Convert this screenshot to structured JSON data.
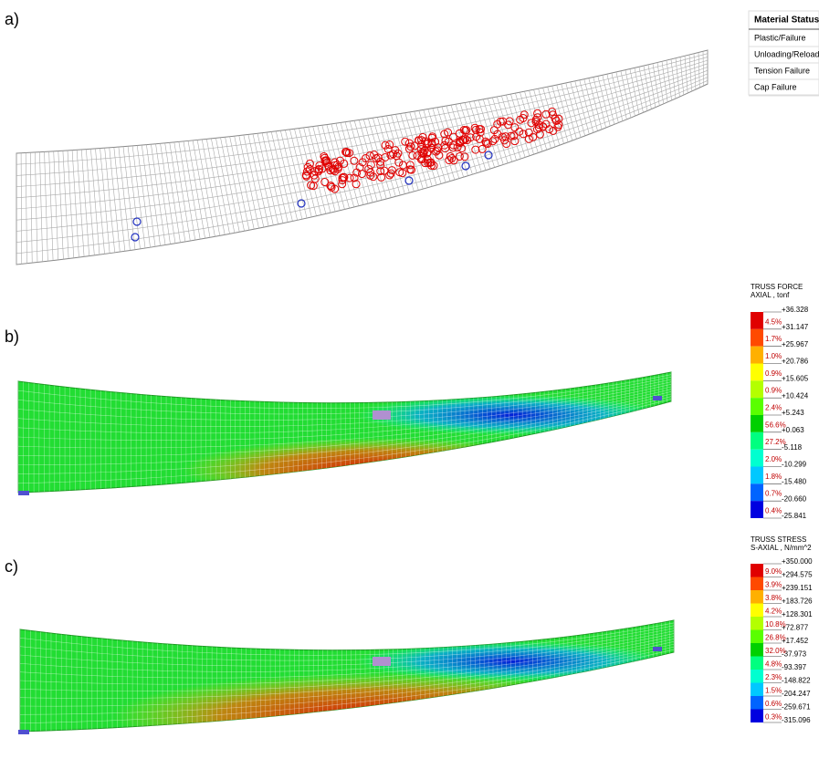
{
  "panels": [
    {
      "label": "a)"
    },
    {
      "label": "b)"
    },
    {
      "label": "c)"
    }
  ],
  "material_status": {
    "title": "Material Status",
    "items": [
      "Plastic/Failure",
      "Unloading/Reloadi",
      "Tension Failure",
      "Cap Failure"
    ]
  },
  "legends": [
    {
      "title": "TRUSS FORCE",
      "subtitle": "AXIAL , tonf",
      "colors": [
        "#e00000",
        "#ff4a00",
        "#ffb000",
        "#ffff00",
        "#b4ff00",
        "#5aff00",
        "#00d000",
        "#00ff80",
        "#00ffd0",
        "#00c8ff",
        "#0064ff",
        "#0000e0"
      ],
      "values": [
        "+36.328",
        "+31.147",
        "+25.967",
        "+20.786",
        "+15.605",
        "+10.424",
        "+5.243",
        "+0.063",
        "-5.118",
        "-10.299",
        "-15.480",
        "-20.660",
        "-25.841"
      ],
      "percentages": [
        "4.5%",
        "1.7%",
        "1.0%",
        "0.9%",
        "0.9%",
        "2.4%",
        "56.6%",
        "27.2%",
        "2.0%",
        "1.8%",
        "0.7%",
        "0.4%"
      ]
    },
    {
      "title": "TRUSS STRESS",
      "subtitle": "S-AXIAL , N/mm^2",
      "colors": [
        "#e00000",
        "#ff4a00",
        "#ffb000",
        "#ffff00",
        "#b4ff00",
        "#5aff00",
        "#00d000",
        "#00ff80",
        "#00ffd0",
        "#00c8ff",
        "#0064ff",
        "#0000e0"
      ],
      "values": [
        "+350.000",
        "+294.575",
        "+239.151",
        "+183.726",
        "+128.301",
        "+72.877",
        "+17.452",
        "-37.973",
        "-93.397",
        "-148.822",
        "-204.247",
        "-259.671",
        "-315.096"
      ],
      "percentages": [
        "9.0%",
        "3.9%",
        "3.8%",
        "4.2%",
        "10.8%",
        "26.8%",
        "32.0%",
        "4.8%",
        "2.3%",
        "1.5%",
        "0.6%",
        "0.3%"
      ]
    }
  ]
}
